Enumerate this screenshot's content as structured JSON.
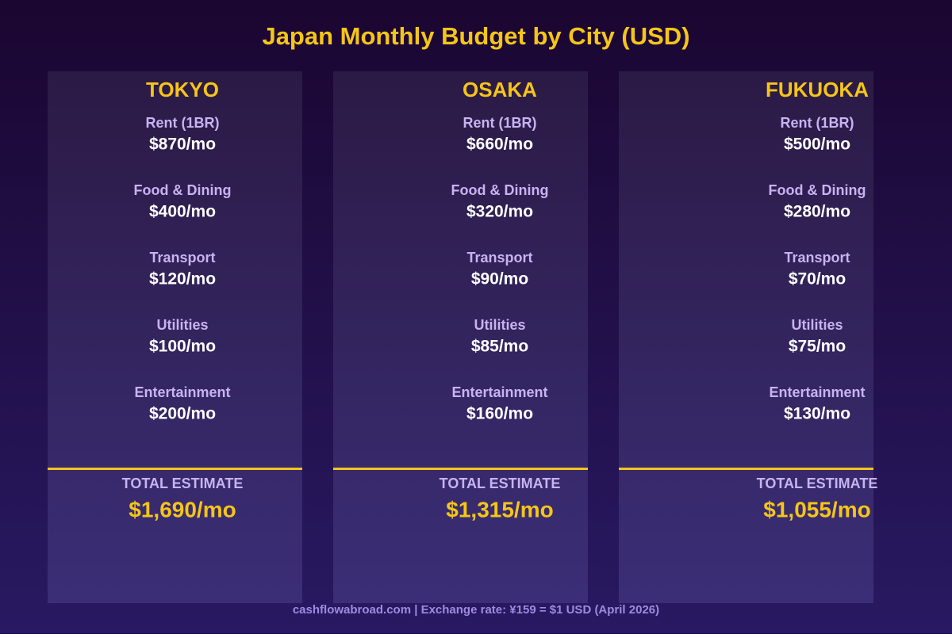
{
  "title": "Japan Monthly Budget by City (USD)",
  "cities": [
    {
      "name": "TOKYO",
      "items": [
        {
          "label": "Rent (1BR)",
          "value": "$870/mo"
        },
        {
          "label": "Food & Dining",
          "value": "$400/mo"
        },
        {
          "label": "Transport",
          "value": "$120/mo"
        },
        {
          "label": "Utilities",
          "value": "$100/mo"
        },
        {
          "label": "Entertainment",
          "value": "$200/mo"
        }
      ],
      "total_label": "TOTAL ESTIMATE",
      "total": "$1,690/mo"
    },
    {
      "name": "OSAKA",
      "items": [
        {
          "label": "Rent (1BR)",
          "value": "$660/mo"
        },
        {
          "label": "Food & Dining",
          "value": "$320/mo"
        },
        {
          "label": "Transport",
          "value": "$90/mo"
        },
        {
          "label": "Utilities",
          "value": "$85/mo"
        },
        {
          "label": "Entertainment",
          "value": "$160/mo"
        }
      ],
      "total_label": "TOTAL ESTIMATE",
      "total": "$1,315/mo"
    },
    {
      "name": "FUKUOKA",
      "items": [
        {
          "label": "Rent (1BR)",
          "value": "$500/mo"
        },
        {
          "label": "Food & Dining",
          "value": "$280/mo"
        },
        {
          "label": "Transport",
          "value": "$70/mo"
        },
        {
          "label": "Utilities",
          "value": "$75/mo"
        },
        {
          "label": "Entertainment",
          "value": "$130/mo"
        }
      ],
      "total_label": "TOTAL ESTIMATE",
      "total": "$1,055/mo"
    }
  ],
  "footer": "cashflowabroad.com | Exchange rate: ¥159 = $1 USD (April 2026)"
}
